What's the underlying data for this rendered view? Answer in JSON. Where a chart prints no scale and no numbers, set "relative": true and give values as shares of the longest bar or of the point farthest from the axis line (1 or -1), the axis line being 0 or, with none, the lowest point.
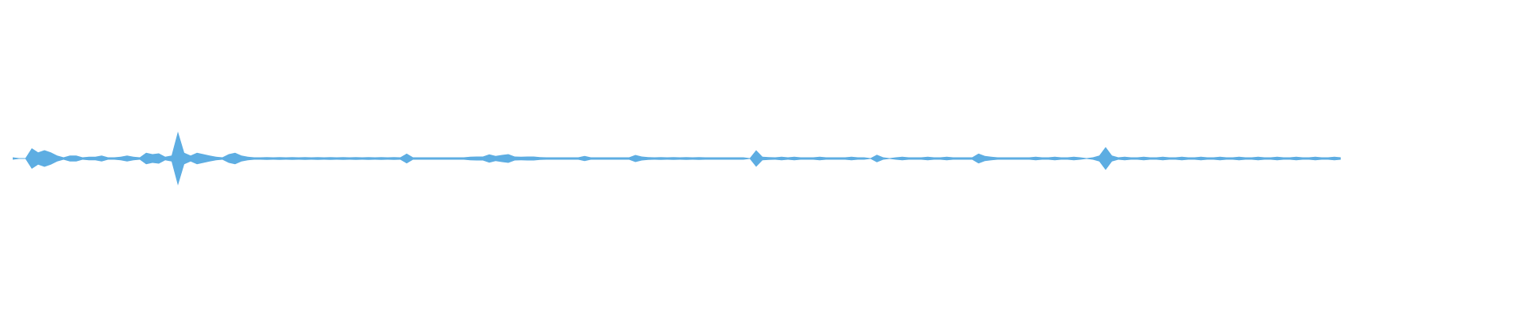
{
  "chart_data": {
    "type": "area",
    "relative": true,
    "categories": [
      null,
      null,
      null,
      null,
      null,
      null,
      null,
      null,
      null,
      null,
      null,
      null,
      null,
      null,
      null,
      null,
      null,
      null,
      null,
      null,
      null,
      null,
      null,
      null,
      null,
      null,
      null,
      null,
      null,
      null,
      null,
      null,
      null,
      null,
      null,
      null,
      null,
      null,
      null,
      null,
      null,
      null,
      null,
      null,
      null,
      null,
      null,
      null,
      null,
      null,
      null,
      null,
      null,
      null,
      null,
      null,
      null,
      null,
      null,
      null,
      null,
      null,
      null,
      null,
      null,
      null,
      null,
      null,
      null,
      null,
      null,
      null,
      null,
      null,
      null,
      null,
      null,
      null,
      null,
      null,
      null,
      null,
      null,
      null,
      null,
      null,
      null,
      null,
      null,
      null,
      null,
      null,
      null,
      null,
      null,
      null,
      null,
      null,
      null,
      null,
      null,
      null,
      null,
      null,
      null,
      null,
      null,
      null,
      null,
      null,
      null,
      null,
      null,
      null,
      null,
      null,
      null,
      null,
      null,
      null,
      null,
      null,
      null,
      null,
      null,
      null,
      null,
      null,
      null,
      null,
      null,
      null,
      null,
      null,
      null,
      null,
      null,
      null,
      null,
      null,
      null,
      null,
      null,
      null,
      null,
      null,
      null,
      null,
      null,
      null,
      null,
      null,
      null,
      null,
      null,
      null,
      null,
      null,
      null,
      null,
      null,
      null,
      null,
      null,
      null,
      null,
      null,
      null,
      null,
      null,
      null,
      null,
      null,
      null,
      null,
      null,
      null,
      null,
      null,
      null,
      null,
      null,
      null,
      null,
      null,
      null,
      null,
      null,
      null,
      null,
      null,
      null,
      null,
      null,
      null,
      null,
      null,
      null,
      null,
      null,
      null,
      null,
      null,
      null,
      null,
      null,
      null,
      null,
      null,
      null
    ],
    "color": "#5dade2",
    "values": [
      0.03,
      0,
      0,
      0.37,
      0.22,
      0.3,
      0.22,
      0.1,
      0.03,
      0.1,
      0.1,
      0.03,
      0.05,
      0.05,
      0.1,
      0.03,
      0.03,
      0.05,
      0.1,
      0.05,
      0.03,
      0.2,
      0.15,
      0.18,
      0.05,
      0.1,
      1,
      0.2,
      0.1,
      0.2,
      0.15,
      0.1,
      0.05,
      0.03,
      0.15,
      0.2,
      0.1,
      0.05,
      0.03,
      0.03,
      0.04,
      0.03,
      0.04,
      0.03,
      0.04,
      0.03,
      0.04,
      0.03,
      0.04,
      0.03,
      0.04,
      0.03,
      0.04,
      0.03,
      0.04,
      0.03,
      0.04,
      0.03,
      0.04,
      0.03,
      0.04,
      0.03,
      0.17,
      0.03,
      0.03,
      0.03,
      0.03,
      0.03,
      0.03,
      0.03,
      0.03,
      0.03,
      0.05,
      0.06,
      0.06,
      0.14,
      0.08,
      0.12,
      0.15,
      0.06,
      0.05,
      0.06,
      0.06,
      0.04,
      0.03,
      0.03,
      0.03,
      0.03,
      0.03,
      0.03,
      0.08,
      0.03,
      0.03,
      0.03,
      0.03,
      0.03,
      0.03,
      0.03,
      0.12,
      0.06,
      0.04,
      0.03,
      0.04,
      0.03,
      0.04,
      0.03,
      0.04,
      0.03,
      0.04,
      0.03,
      0.03,
      0.03,
      0.03,
      0.03,
      0.03,
      0.03,
      0,
      0.3,
      0.05,
      0.04,
      0.03,
      0.05,
      0.03,
      0.05,
      0.03,
      0.03,
      0.03,
      0.05,
      0.03,
      0.03,
      0.03,
      0.03,
      0.05,
      0.03,
      0.03,
      0,
      0.13,
      0.03,
      0,
      0.03,
      0.05,
      0.03,
      0.03,
      0.03,
      0.05,
      0.03,
      0.03,
      0.05,
      0.03,
      0.03,
      0.03,
      0.03,
      0.17,
      0.08,
      0.05,
      0.03,
      0.03,
      0.03,
      0.03,
      0.03,
      0.03,
      0.05,
      0.03,
      0.03,
      0.05,
      0.03,
      0.03,
      0.05,
      0.03,
      0,
      0.03,
      0.1,
      0.42,
      0.1,
      0.03,
      0.05,
      0.03,
      0.03,
      0.05,
      0.03,
      0.03,
      0.05,
      0.03,
      0.03,
      0.05,
      0.03,
      0.03,
      0.05,
      0.03,
      0.03,
      0.05,
      0.03,
      0.03,
      0.05,
      0.03,
      0.03,
      0.05,
      0.03,
      0.03,
      0.05,
      0.03,
      0.03,
      0.05,
      0.03,
      0.03,
      0.05,
      0.03,
      0.03,
      0.05,
      0.03
    ]
  }
}
